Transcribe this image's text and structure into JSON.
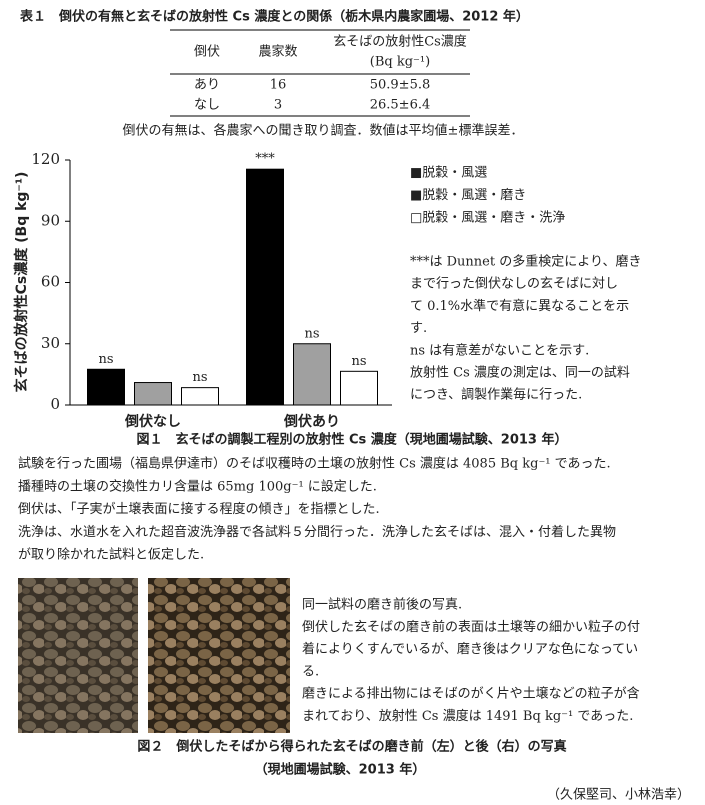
{
  "table1": {
    "title": "表１　倒伏の有無と玄そばの放射性 Cs 濃度との関係（栃木県内農家圃場、2012 年）",
    "headers": [
      "倒伏",
      "農家数",
      "玄そばの放射性Cs濃度",
      "(Bq kg⁻¹)"
    ],
    "rows": [
      [
        "あり",
        "16",
        "50.9±5.8"
      ],
      [
        "なし",
        "3",
        "26.5±6.4"
      ]
    ],
    "note": "倒伏の有無は、各農家への聞き取り調査．数値は平均値±標準誤差．"
  },
  "chart_data": {
    "type": "bar",
    "ylabel": "玄そばの放射性Cs濃度 (Bq kg⁻¹)",
    "categories": [
      "倒伏なし",
      "倒伏あり"
    ],
    "series": [
      {
        "name": "■脱穀・風選",
        "color": "#000000",
        "values": [
          17.5,
          115.5
        ],
        "sig_labels": [
          "ns",
          "***"
        ]
      },
      {
        "name": "■脱穀・風選・磨き",
        "color": "#a0a0a0",
        "values": [
          11,
          30
        ],
        "sig_labels": [
          null,
          "ns"
        ]
      },
      {
        "name": "□脱穀・風選・磨き・洗浄",
        "color": "#ffffff",
        "values": [
          8.5,
          16.5
        ],
        "sig_labels": [
          "ns",
          "ns"
        ]
      }
    ],
    "ylim": [
      0,
      120
    ],
    "yticks": [
      0,
      30,
      60,
      90,
      120
    ],
    "notes": [
      "***は Dunnet の多重検定により、磨き",
      "まで行った倒伏なしの玄そばに対し",
      "て  0.1%水準で有意に異なることを示",
      "す.",
      "ns は有意差がないことを示す.",
      "放射性  Cs  濃度の測定は、同一の試料",
      "につき、調製作業毎に行った."
    ],
    "caption": "図１　玄そばの調製工程別の放射性 Cs 濃度（現地圃場試験、2013 年）"
  },
  "paragraph": [
    "試験を行った圃場（福島県伊達市）のそば収穫時の土壌の放射性 Cs 濃度は 4085 Bq kg⁻¹ であった.",
    "播種時の土壌の交換性カリ含量は 65mg 100g⁻¹ に設定した.",
    "倒伏は、「子実が土壌表面に接する程度の傾き」を指標とした.",
    "洗浄は、水道水を入れた超音波洗浄器で各試料５分間行った．洗浄した玄そばは、混入・付着した異物",
    "が取り除かれた試料と仮定した."
  ],
  "figure2": {
    "text": [
      "同一試料の磨き前後の写真.",
      "倒伏した玄そばの磨き前の表面は土壌等の細かい粒子の付",
      "着によりくすんでいるが、磨き後はクリアな色になってい",
      "る.",
      "磨きによる排出物にはそばのがく片や土壌などの粒子が含",
      "まれており、放射性 Cs 濃度は 1491 Bq kg⁻¹ であった."
    ],
    "caption": [
      "図２　倒伏したそばから得られた玄そばの磨き前（左）と後（右）の写真",
      "（現地圃場試験、2013 年）"
    ]
  },
  "author": "（久保堅司、小林浩幸）"
}
